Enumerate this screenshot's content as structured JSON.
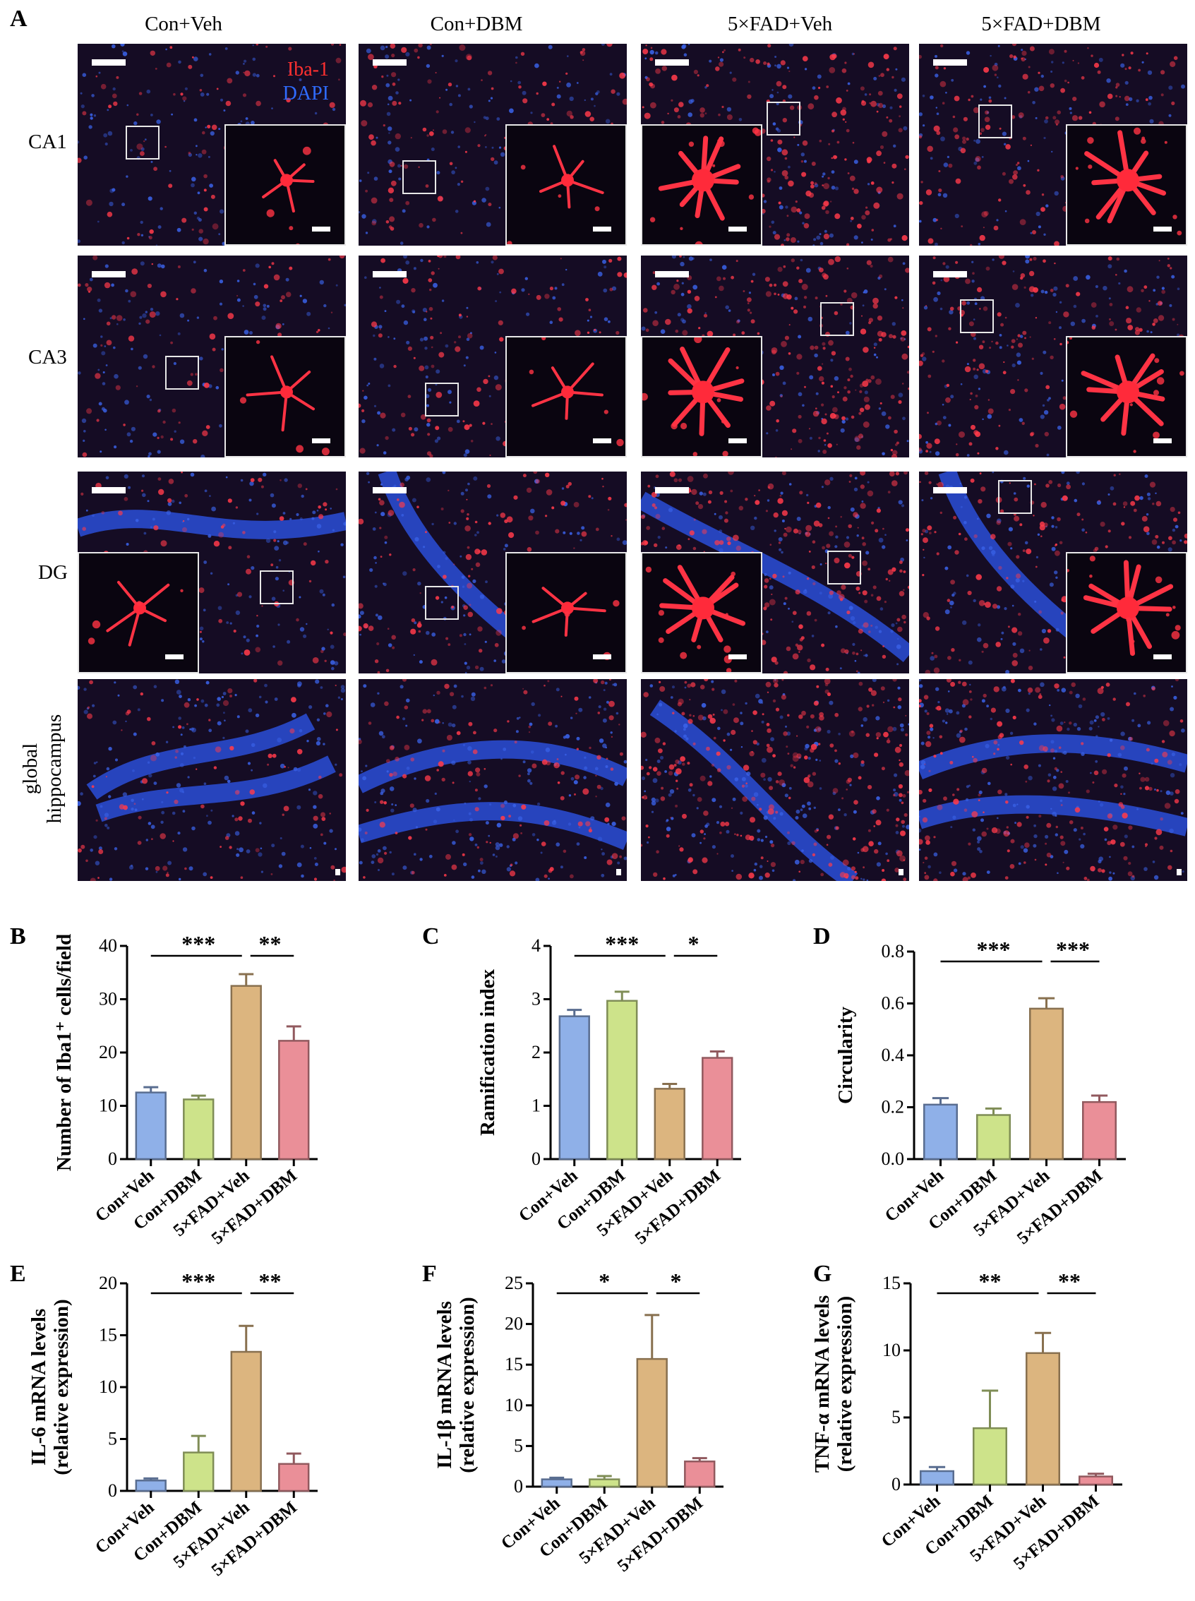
{
  "figure": {
    "panel_letters": [
      "A",
      "B",
      "C",
      "D",
      "E",
      "F",
      "G"
    ],
    "columns": [
      "Con+Veh",
      "Con+DBM",
      "5×FAD+Veh",
      "5×FAD+DBM"
    ],
    "rows": [
      "CA1",
      "CA3",
      "DG"
    ],
    "global_row_label": [
      "global",
      "hippocampus"
    ],
    "stain_legend": [
      {
        "text": "Iba-1",
        "color": "#ff3030"
      },
      {
        "text": "DAPI",
        "color": "#2f6bff"
      }
    ]
  },
  "colors": {
    "Con+Veh": "#8fb0e8",
    "Con+DBM": "#cde38a",
    "5×FAD+Veh": "#dcb57f",
    "5×FAD+DBM": "#ea8f98"
  },
  "chart_data": [
    {
      "panel": "B",
      "type": "bar",
      "categories": [
        "Con+Veh",
        "Con+DBM",
        "5×FAD+Veh",
        "5×FAD+DBM"
      ],
      "values": [
        12.5,
        11.2,
        32.5,
        22.2
      ],
      "errors": [
        1.0,
        0.7,
        2.2,
        2.7
      ],
      "ylabel": "Number of Iba1⁺ cells/field",
      "ylim": [
        0,
        40
      ],
      "yticks": [
        0,
        10,
        20,
        30,
        40
      ],
      "sig": [
        {
          "from": 0,
          "to": 2,
          "label": "***"
        },
        {
          "from": 2,
          "to": 3,
          "label": "**"
        }
      ]
    },
    {
      "panel": "C",
      "type": "bar",
      "categories": [
        "Con+Veh",
        "Con+DBM",
        "5×FAD+Veh",
        "5×FAD+DBM"
      ],
      "values": [
        2.68,
        2.97,
        1.32,
        1.9
      ],
      "errors": [
        0.12,
        0.17,
        0.09,
        0.12
      ],
      "ylabel": "Ramification index",
      "ylim": [
        0,
        4
      ],
      "yticks": [
        0,
        1,
        2,
        3,
        4
      ],
      "sig": [
        {
          "from": 0,
          "to": 2,
          "label": "***"
        },
        {
          "from": 2,
          "to": 3,
          "label": "*"
        }
      ]
    },
    {
      "panel": "D",
      "type": "bar",
      "categories": [
        "Con+Veh",
        "Con+DBM",
        "5×FAD+Veh",
        "5×FAD+DBM"
      ],
      "values": [
        0.21,
        0.17,
        0.58,
        0.22
      ],
      "errors": [
        0.025,
        0.025,
        0.04,
        0.025
      ],
      "ylabel": "Circularity",
      "ylim": [
        0,
        0.8
      ],
      "yticks": [
        "0.0",
        "0.2",
        "0.4",
        "0.6",
        "0.8"
      ],
      "sig": [
        {
          "from": 0,
          "to": 2,
          "label": "***"
        },
        {
          "from": 2,
          "to": 3,
          "label": "***"
        }
      ]
    },
    {
      "panel": "E",
      "type": "bar",
      "categories": [
        "Con+Veh",
        "Con+DBM",
        "5×FAD+Veh",
        "5×FAD+DBM"
      ],
      "values": [
        1.0,
        3.7,
        13.4,
        2.6
      ],
      "errors": [
        0.2,
        1.6,
        2.5,
        1.0
      ],
      "ylabel": [
        "IL-6 mRNA levels",
        "(relative expression)"
      ],
      "ylim": [
        0,
        20
      ],
      "yticks": [
        0,
        5,
        10,
        15,
        20
      ],
      "sig": [
        {
          "from": 0,
          "to": 2,
          "label": "***"
        },
        {
          "from": 2,
          "to": 3,
          "label": "**"
        }
      ]
    },
    {
      "panel": "F",
      "type": "bar",
      "categories": [
        "Con+Veh",
        "Con+DBM",
        "5×FAD+Veh",
        "5×FAD+DBM"
      ],
      "values": [
        0.9,
        0.9,
        15.7,
        3.1
      ],
      "errors": [
        0.2,
        0.4,
        5.4,
        0.4
      ],
      "ylabel": [
        "IL-1β mRNA levels",
        "(relative expression)"
      ],
      "ylim": [
        0,
        25
      ],
      "yticks": [
        0,
        5,
        10,
        15,
        20,
        25
      ],
      "sig": [
        {
          "from": 0,
          "to": 2,
          "label": "*"
        },
        {
          "from": 2,
          "to": 3,
          "label": "*"
        }
      ]
    },
    {
      "panel": "G",
      "type": "bar",
      "categories": [
        "Con+Veh",
        "Con+DBM",
        "5×FAD+Veh",
        "5×FAD+DBM"
      ],
      "values": [
        1.0,
        4.2,
        9.8,
        0.6
      ],
      "errors": [
        0.3,
        2.8,
        1.5,
        0.2
      ],
      "ylabel": [
        "TNF-α mRNA levels",
        "(relative expression)"
      ],
      "ylim": [
        0,
        15
      ],
      "yticks": [
        0,
        5,
        10,
        15
      ],
      "sig": [
        {
          "from": 0,
          "to": 2,
          "label": "**"
        },
        {
          "from": 2,
          "to": 3,
          "label": "**"
        }
      ]
    }
  ]
}
